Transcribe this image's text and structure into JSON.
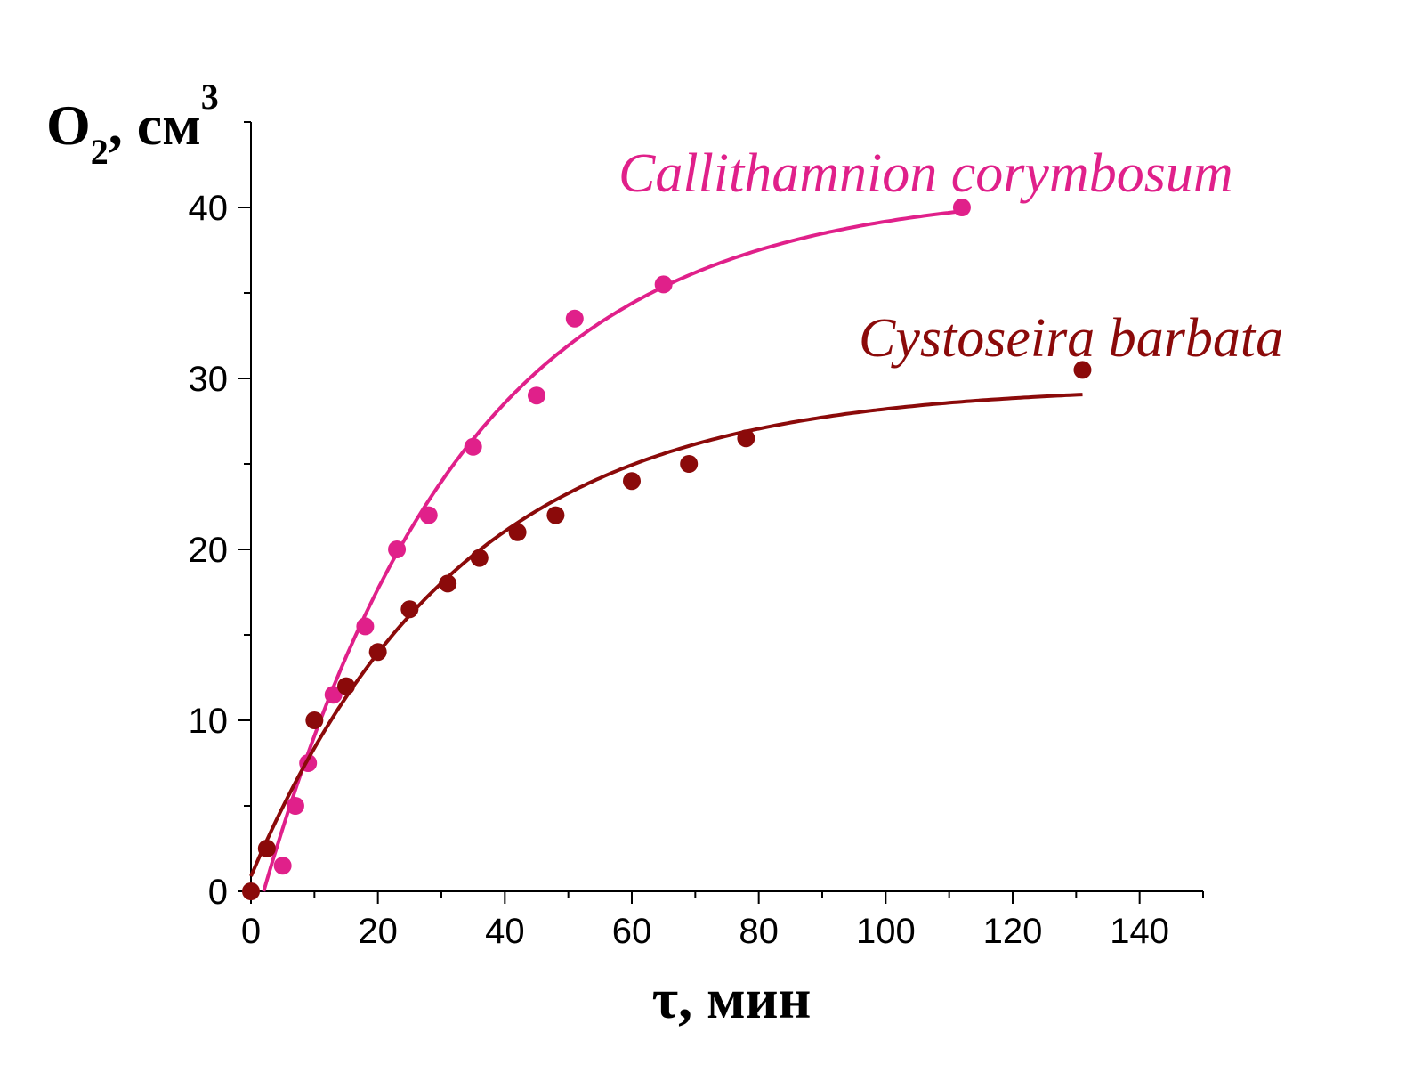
{
  "chart_data": {
    "type": "scatter",
    "xlabel": "τ, мин",
    "ylabel": {
      "main": "O",
      "sub": "2",
      "rest": ", см",
      "sup": "3"
    },
    "xlim": [
      0,
      150
    ],
    "ylim": [
      0,
      45
    ],
    "x_ticks": [
      0,
      20,
      40,
      60,
      80,
      100,
      120,
      140
    ],
    "x_tick_labels": [
      "0",
      "20",
      "40",
      "60",
      "80",
      "100",
      "120",
      "140"
    ],
    "y_ticks": [
      0,
      10,
      20,
      30,
      40
    ],
    "y_tick_labels": [
      "0",
      "10",
      "20",
      "30",
      "40"
    ],
    "grid": false,
    "series": [
      {
        "name": "Callithamnion corymbosum",
        "color": "#e0208a",
        "points": [
          [
            5,
            1.5
          ],
          [
            7,
            5
          ],
          [
            9,
            7.5
          ],
          [
            13,
            11.5
          ],
          [
            18,
            15.5
          ],
          [
            23,
            20
          ],
          [
            28,
            22
          ],
          [
            35,
            26
          ],
          [
            45,
            29
          ],
          [
            51,
            33.5
          ],
          [
            65,
            35.5
          ],
          [
            112,
            40
          ]
        ],
        "fit": {
          "model": "A*(1-exp(-(x-x0)/t))",
          "A": 41.1,
          "x0": 2,
          "t": 32,
          "x_range": [
            2,
            112
          ]
        }
      },
      {
        "name": "Cystoseira barbata",
        "color": "#8b0a0a",
        "points": [
          [
            0,
            0
          ],
          [
            2.5,
            2.5
          ],
          [
            10,
            10
          ],
          [
            15,
            12
          ],
          [
            20,
            14
          ],
          [
            25,
            16.5
          ],
          [
            31,
            18
          ],
          [
            36,
            19.5
          ],
          [
            42,
            21
          ],
          [
            48,
            22
          ],
          [
            60,
            24
          ],
          [
            69,
            25
          ],
          [
            78,
            26.5
          ],
          [
            131,
            30.5
          ]
        ],
        "fit": {
          "model": "A*(1-exp(-(x-x0)/t))",
          "A": 29.6,
          "x0": -1,
          "t": 33,
          "x_range": [
            0,
            131
          ]
        }
      }
    ]
  }
}
